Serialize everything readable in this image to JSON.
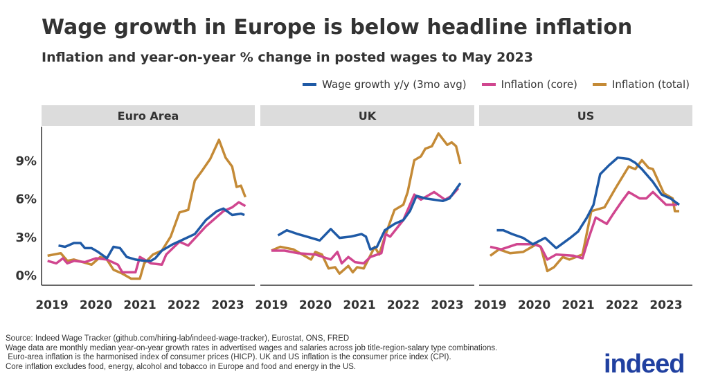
{
  "header": {
    "title": "Wage growth in Europe is below headline inflation",
    "subtitle": "Inflation and year-on-year % change in posted wages to May 2023"
  },
  "colors": {
    "wage": "#1f5aa6",
    "core": "#d0468f",
    "total": "#c48a36",
    "strip": "#dcdcdc"
  },
  "chart_data": [
    {
      "type": "line",
      "panel": "Euro Area",
      "xticks": [
        "2019",
        "2020",
        "2021",
        "2022",
        "2023"
      ],
      "yticks": [
        "0%",
        "3%",
        "6%",
        "9%"
      ],
      "ylim": [
        -0.8,
        11.5
      ],
      "legend": "top-right",
      "series": [
        {
          "name": "Wage growth y/y (3mo avg)",
          "key": "wage",
          "points": [
            [
              2019.15,
              2.3
            ],
            [
              2019.3,
              2.2
            ],
            [
              2019.5,
              2.5
            ],
            [
              2019.65,
              2.5
            ],
            [
              2019.75,
              2.1
            ],
            [
              2019.9,
              2.1
            ],
            [
              2020.05,
              1.8
            ],
            [
              2020.25,
              1.3
            ],
            [
              2020.4,
              2.2
            ],
            [
              2020.55,
              2.1
            ],
            [
              2020.7,
              1.4
            ],
            [
              2020.9,
              1.2
            ],
            [
              2021.1,
              1.1
            ],
            [
              2021.25,
              1.1
            ],
            [
              2021.35,
              1.3
            ],
            [
              2021.5,
              1.9
            ],
            [
              2021.75,
              2.4
            ],
            [
              2022.0,
              2.8
            ],
            [
              2022.25,
              3.2
            ],
            [
              2022.5,
              4.3
            ],
            [
              2022.75,
              5.0
            ],
            [
              2022.9,
              5.2
            ],
            [
              2023.1,
              4.7
            ],
            [
              2023.3,
              4.8
            ],
            [
              2023.38,
              4.7
            ]
          ]
        },
        {
          "name": "Inflation (core)",
          "key": "core",
          "points": [
            [
              2018.9,
              1.1
            ],
            [
              2019.1,
              0.9
            ],
            [
              2019.25,
              1.3
            ],
            [
              2019.35,
              0.9
            ],
            [
              2019.5,
              1.1
            ],
            [
              2019.75,
              1.0
            ],
            [
              2020.0,
              1.3
            ],
            [
              2020.25,
              1.2
            ],
            [
              2020.5,
              0.8
            ],
            [
              2020.6,
              0.2
            ],
            [
              2020.9,
              0.2
            ],
            [
              2021.0,
              1.4
            ],
            [
              2021.25,
              0.9
            ],
            [
              2021.5,
              0.8
            ],
            [
              2021.6,
              1.6
            ],
            [
              2021.9,
              2.6
            ],
            [
              2022.1,
              2.3
            ],
            [
              2022.5,
              3.8
            ],
            [
              2022.9,
              5.0
            ],
            [
              2023.1,
              5.3
            ],
            [
              2023.25,
              5.7
            ],
            [
              2023.4,
              5.4
            ]
          ]
        },
        {
          "name": "Inflation (total)",
          "key": "total",
          "points": [
            [
              2018.9,
              1.5
            ],
            [
              2019.2,
              1.7
            ],
            [
              2019.35,
              1.1
            ],
            [
              2019.5,
              1.2
            ],
            [
              2019.9,
              0.8
            ],
            [
              2020.1,
              1.4
            ],
            [
              2020.25,
              1.2
            ],
            [
              2020.4,
              0.4
            ],
            [
              2020.6,
              0.1
            ],
            [
              2020.8,
              -0.3
            ],
            [
              2021.0,
              -0.3
            ],
            [
              2021.1,
              0.9
            ],
            [
              2021.3,
              1.6
            ],
            [
              2021.5,
              1.9
            ],
            [
              2021.7,
              3.0
            ],
            [
              2021.9,
              4.9
            ],
            [
              2022.1,
              5.1
            ],
            [
              2022.25,
              7.4
            ],
            [
              2022.4,
              8.1
            ],
            [
              2022.6,
              9.1
            ],
            [
              2022.8,
              10.6
            ],
            [
              2022.95,
              9.2
            ],
            [
              2023.1,
              8.5
            ],
            [
              2023.2,
              6.9
            ],
            [
              2023.3,
              7.0
            ],
            [
              2023.4,
              6.1
            ]
          ]
        }
      ]
    },
    {
      "type": "line",
      "panel": "UK",
      "xticks": [
        "2019",
        "2020",
        "2021",
        "2022",
        "2023"
      ],
      "ylim": [
        -0.8,
        11.5
      ],
      "series": [
        {
          "name": "Wage growth y/y (3mo avg)",
          "key": "wage",
          "points": [
            [
              2019.15,
              3.1
            ],
            [
              2019.35,
              3.5
            ],
            [
              2019.6,
              3.2
            ],
            [
              2019.9,
              2.9
            ],
            [
              2020.1,
              2.7
            ],
            [
              2020.35,
              3.6
            ],
            [
              2020.55,
              2.9
            ],
            [
              2020.8,
              3.0
            ],
            [
              2021.05,
              3.2
            ],
            [
              2021.15,
              3.0
            ],
            [
              2021.25,
              2.0
            ],
            [
              2021.4,
              2.2
            ],
            [
              2021.58,
              3.5
            ],
            [
              2021.8,
              4.0
            ],
            [
              2022.0,
              4.3
            ],
            [
              2022.15,
              5.0
            ],
            [
              2022.3,
              6.2
            ],
            [
              2022.5,
              6.0
            ],
            [
              2022.9,
              5.8
            ],
            [
              2023.05,
              6.0
            ],
            [
              2023.3,
              7.2
            ]
          ]
        },
        {
          "name": "Inflation (core)",
          "key": "core",
          "points": [
            [
              2019.0,
              1.9
            ],
            [
              2019.3,
              1.9
            ],
            [
              2019.6,
              1.7
            ],
            [
              2020.0,
              1.6
            ],
            [
              2020.35,
              1.2
            ],
            [
              2020.5,
              1.8
            ],
            [
              2020.6,
              0.9
            ],
            [
              2020.75,
              1.4
            ],
            [
              2020.9,
              1.0
            ],
            [
              2021.1,
              0.9
            ],
            [
              2021.25,
              1.4
            ],
            [
              2021.5,
              1.7
            ],
            [
              2021.6,
              3.2
            ],
            [
              2021.7,
              3.0
            ],
            [
              2022.0,
              4.3
            ],
            [
              2022.25,
              6.3
            ],
            [
              2022.4,
              5.9
            ],
            [
              2022.7,
              6.5
            ],
            [
              2022.95,
              5.9
            ],
            [
              2023.1,
              6.2
            ],
            [
              2023.25,
              6.8
            ]
          ]
        },
        {
          "name": "Inflation (total)",
          "key": "total",
          "points": [
            [
              2019.0,
              1.9
            ],
            [
              2019.2,
              2.2
            ],
            [
              2019.5,
              2.0
            ],
            [
              2019.7,
              1.6
            ],
            [
              2019.9,
              1.2
            ],
            [
              2020.0,
              1.8
            ],
            [
              2020.15,
              1.6
            ],
            [
              2020.3,
              0.5
            ],
            [
              2020.45,
              0.6
            ],
            [
              2020.55,
              0.1
            ],
            [
              2020.75,
              0.7
            ],
            [
              2020.85,
              0.2
            ],
            [
              2020.95,
              0.6
            ],
            [
              2021.1,
              0.5
            ],
            [
              2021.35,
              2.2
            ],
            [
              2021.45,
              1.6
            ],
            [
              2021.6,
              3.2
            ],
            [
              2021.8,
              5.1
            ],
            [
              2022.0,
              5.5
            ],
            [
              2022.1,
              6.5
            ],
            [
              2022.25,
              9.0
            ],
            [
              2022.4,
              9.3
            ],
            [
              2022.5,
              9.9
            ],
            [
              2022.65,
              10.1
            ],
            [
              2022.8,
              11.1
            ],
            [
              2023.0,
              10.2
            ],
            [
              2023.1,
              10.4
            ],
            [
              2023.2,
              10.1
            ],
            [
              2023.3,
              8.7
            ]
          ]
        }
      ]
    },
    {
      "type": "line",
      "panel": "US",
      "xticks": [
        "2019",
        "2020",
        "2021",
        "2022",
        "2023"
      ],
      "ylim": [
        -0.8,
        11.5
      ],
      "series": [
        {
          "name": "Wage growth y/y (3mo avg)",
          "key": "wage",
          "points": [
            [
              2019.15,
              3.5
            ],
            [
              2019.3,
              3.5
            ],
            [
              2019.5,
              3.2
            ],
            [
              2019.75,
              2.9
            ],
            [
              2019.97,
              2.4
            ],
            [
              2020.25,
              2.9
            ],
            [
              2020.5,
              2.1
            ],
            [
              2020.82,
              2.9
            ],
            [
              2021.0,
              3.4
            ],
            [
              2021.2,
              4.5
            ],
            [
              2021.35,
              5.5
            ],
            [
              2021.5,
              7.9
            ],
            [
              2021.7,
              8.6
            ],
            [
              2021.9,
              9.2
            ],
            [
              2022.15,
              9.1
            ],
            [
              2022.3,
              8.8
            ],
            [
              2022.45,
              8.3
            ],
            [
              2022.7,
              7.3
            ],
            [
              2022.9,
              6.3
            ],
            [
              2023.1,
              6.0
            ],
            [
              2023.3,
              5.5
            ]
          ]
        },
        {
          "name": "Inflation (core)",
          "key": "core",
          "points": [
            [
              2019.0,
              2.2
            ],
            [
              2019.25,
              2.0
            ],
            [
              2019.6,
              2.4
            ],
            [
              2020.0,
              2.4
            ],
            [
              2020.15,
              2.2
            ],
            [
              2020.3,
              1.2
            ],
            [
              2020.5,
              1.6
            ],
            [
              2020.9,
              1.5
            ],
            [
              2021.1,
              1.3
            ],
            [
              2021.25,
              3.0
            ],
            [
              2021.4,
              4.5
            ],
            [
              2021.65,
              4.0
            ],
            [
              2021.8,
              4.8
            ],
            [
              2022.0,
              5.8
            ],
            [
              2022.15,
              6.5
            ],
            [
              2022.4,
              6.0
            ],
            [
              2022.55,
              6.0
            ],
            [
              2022.7,
              6.5
            ],
            [
              2023.0,
              5.5
            ],
            [
              2023.25,
              5.5
            ]
          ]
        },
        {
          "name": "Inflation (total)",
          "key": "total",
          "points": [
            [
              2019.0,
              1.5
            ],
            [
              2019.2,
              2.0
            ],
            [
              2019.45,
              1.7
            ],
            [
              2019.75,
              1.8
            ],
            [
              2020.05,
              2.4
            ],
            [
              2020.15,
              2.2
            ],
            [
              2020.3,
              0.3
            ],
            [
              2020.45,
              0.6
            ],
            [
              2020.65,
              1.4
            ],
            [
              2020.8,
              1.2
            ],
            [
              2021.1,
              1.6
            ],
            [
              2021.3,
              5.0
            ],
            [
              2021.6,
              5.3
            ],
            [
              2021.85,
              6.8
            ],
            [
              2022.15,
              8.5
            ],
            [
              2022.3,
              8.3
            ],
            [
              2022.45,
              9.0
            ],
            [
              2022.6,
              8.4
            ],
            [
              2022.7,
              8.3
            ],
            [
              2022.95,
              6.4
            ],
            [
              2023.15,
              6.0
            ],
            [
              2023.2,
              5.0
            ],
            [
              2023.3,
              5.0
            ]
          ]
        }
      ]
    }
  ],
  "legend": [
    {
      "key": "wage",
      "label": "Wage growth y/y (3mo avg)"
    },
    {
      "key": "core",
      "label": "Inflation (core)"
    },
    {
      "key": "total",
      "label": "Inflation (total)"
    }
  ],
  "footer": {
    "lines": [
      "Source: Indeed Wage Tracker (github.com/hiring-lab/indeed-wage-tracker), Eurostat, ONS, FRED",
      "Wage data are monthly median year-on-year growth rates in advertised wages and salaries across job title-region-salary type combinations.",
      " Euro-area inflation is the harmonised index of consumer prices (HICP). UK and US inflation is the consumer price index (CPI).",
      "Core inflation excludes food, energy, alcohol and tobacco in Europe and food and energy in the US."
    ],
    "logo": "indeed"
  }
}
